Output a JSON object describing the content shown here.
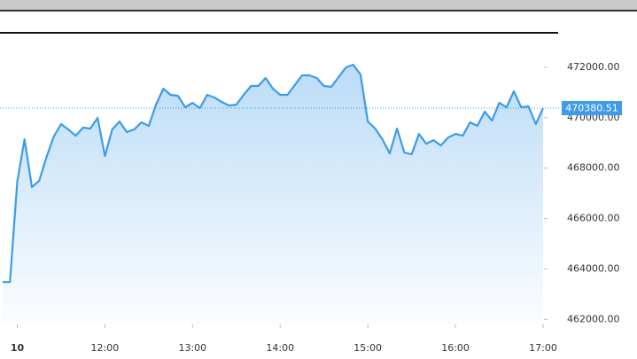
{
  "chart_data": {
    "type": "area",
    "color": "#3d9be9",
    "x": [
      650,
      655,
      660,
      665,
      670,
      675,
      680,
      685,
      690,
      695,
      700,
      705,
      710,
      715,
      720,
      725,
      730,
      735,
      740,
      745,
      750,
      755,
      760,
      765,
      770,
      775,
      780,
      785,
      790,
      795,
      800,
      805,
      810,
      815,
      820,
      825,
      830,
      835,
      840,
      845,
      850,
      855,
      860,
      865,
      870,
      875,
      880,
      885,
      890,
      895,
      900,
      905,
      910,
      915,
      920,
      925,
      930,
      935,
      940,
      945,
      950,
      955,
      960,
      965,
      970,
      975,
      980,
      985,
      990,
      995,
      1000,
      1005,
      1010,
      1015,
      1020
    ],
    "values": [
      463480,
      463480,
      467458,
      469148,
      467247,
      467493,
      468444,
      469254,
      469747,
      469535,
      469289,
      469606,
      469571,
      469993,
      468479,
      469535,
      469852,
      469430,
      469535,
      469817,
      469676,
      470521,
      471155,
      470908,
      470873,
      470416,
      470592,
      470380,
      470908,
      470803,
      470627,
      470486,
      470521,
      470908,
      471261,
      471261,
      471577,
      471155,
      470908,
      470908,
      471296,
      471683,
      471683,
      471577,
      471261,
      471225,
      471613,
      472000,
      472106,
      471718,
      469852,
      469571,
      469148,
      468585,
      469571,
      468620,
      468549,
      469359,
      468972,
      469113,
      468902,
      469218,
      469359,
      469289,
      469817,
      469676,
      470239,
      469887,
      470592,
      470416,
      471049,
      470416,
      470451,
      469747,
      470380.51
    ],
    "xlim": [
      650,
      1020
    ],
    "ylim": [
      461800,
      473300
    ],
    "xticks": [
      {
        "value": 660,
        "label": "10"
      },
      {
        "value": 720,
        "label": "12:00"
      },
      {
        "value": 780,
        "label": "13:00"
      },
      {
        "value": 840,
        "label": "14:00"
      },
      {
        "value": 900,
        "label": "15:00"
      },
      {
        "value": 960,
        "label": "16:00"
      },
      {
        "value": 1020,
        "label": "17:00"
      }
    ],
    "yticks": [
      {
        "value": 462000,
        "label": "462000.00"
      },
      {
        "value": 464000,
        "label": "464000.00"
      },
      {
        "value": 466000,
        "label": "466000.00"
      },
      {
        "value": 468000,
        "label": "468000.00"
      },
      {
        "value": 470000,
        "label": "470000.00"
      },
      {
        "value": 472000,
        "label": "472000.00"
      }
    ],
    "last_value_line": true
  }
}
